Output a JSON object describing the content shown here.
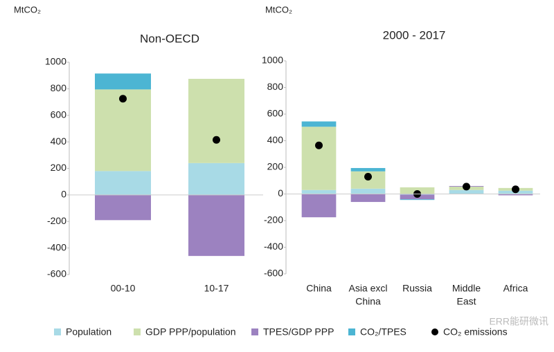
{
  "chart_data": [
    {
      "type": "bar",
      "title": "Non-OECD",
      "ylabel": "MtCO₂",
      "categories": [
        [
          "00-10"
        ],
        [
          "10-17"
        ]
      ],
      "series": [
        {
          "values": [
            180,
            240
          ]
        },
        {
          "values": [
            615,
            635
          ]
        },
        {
          "values": [
            -190,
            -460
          ]
        },
        {
          "values": [
            120,
            0
          ]
        }
      ],
      "emissions": [
        725,
        415
      ],
      "ylim": [
        -600,
        1000
      ],
      "yticks": [
        -600,
        -400,
        -200,
        0,
        200,
        400,
        600,
        800,
        1000
      ]
    },
    {
      "type": "bar",
      "title": "2000 - 2017",
      "ylabel": "MtCO₂",
      "categories": [
        [
          "China"
        ],
        [
          "Asia excl",
          "China"
        ],
        [
          "Russia"
        ],
        [
          "Middle",
          "East"
        ],
        [
          "Africa"
        ]
      ],
      "series": [
        {
          "values": [
            30,
            40,
            -5,
            30,
            25
          ]
        },
        {
          "values": [
            475,
            130,
            50,
            25,
            20
          ]
        },
        {
          "values": [
            -175,
            -60,
            -35,
            5,
            -10
          ]
        },
        {
          "values": [
            40,
            25,
            -5,
            0,
            0
          ]
        }
      ],
      "emissions": [
        365,
        130,
        0,
        55,
        35
      ],
      "ylim": [
        -600,
        1000
      ],
      "yticks": [
        -600,
        -400,
        -200,
        0,
        200,
        400,
        600,
        800,
        1000
      ]
    }
  ],
  "legend": [
    {
      "name": "Population",
      "color": "#a8dae6"
    },
    {
      "name": "GDP PPP/population",
      "color": "#cde0ad"
    },
    {
      "name": "TPES/GDP PPP",
      "color": "#9c82c0"
    },
    {
      "name": "CO₂/TPES",
      "color": "#4cb5d3"
    },
    {
      "name": "CO₂ emissions",
      "color": "#000000"
    }
  ],
  "watermark": "ERR能研微讯"
}
